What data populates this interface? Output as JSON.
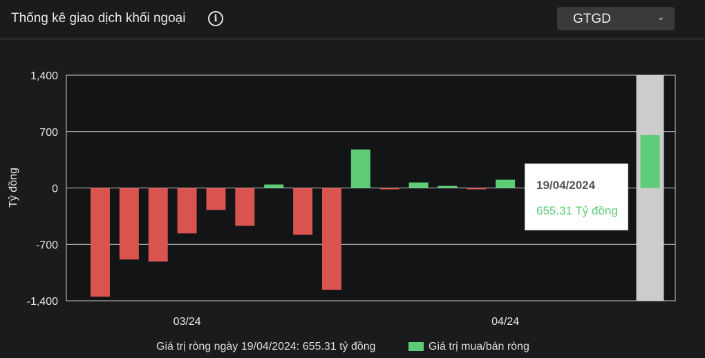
{
  "header": {
    "title": "Thống kê giao dịch khối ngoại",
    "info_icon": "info-circle-icon",
    "select_value": "GTGD"
  },
  "colors": {
    "positive": "#5ecb76",
    "negative": "#d9534f",
    "highlight": "#cccccc"
  },
  "chart_data": {
    "type": "bar",
    "ylabel": "Tỷ đồng",
    "ylim": [
      -1400,
      1400
    ],
    "yticks": [
      1400,
      700,
      0,
      -700,
      -1400
    ],
    "ytick_labels": [
      "1,400",
      "700",
      "0",
      "-700",
      "-1,400"
    ],
    "xtick_labels": [
      {
        "label": "03/24",
        "index": 3
      },
      {
        "label": "04/24",
        "index": 14
      }
    ],
    "values": [
      -1349,
      -888,
      -914,
      -564,
      -273,
      -470,
      43,
      -581,
      -1264,
      478,
      -17,
      68,
      26,
      -9,
      102,
      null,
      null,
      null,
      null,
      655.31
    ],
    "highlight_index": 19,
    "grid": true,
    "legend": {
      "label": "Giá trị mua/bán ròng",
      "placement": "bottom"
    },
    "summary": "Giá trị ròng ngày 19/04/2024: 655.31 tỷ đồng",
    "tooltip": {
      "date": "19/04/2024",
      "value": "655.31 Tỷ đồng"
    }
  }
}
